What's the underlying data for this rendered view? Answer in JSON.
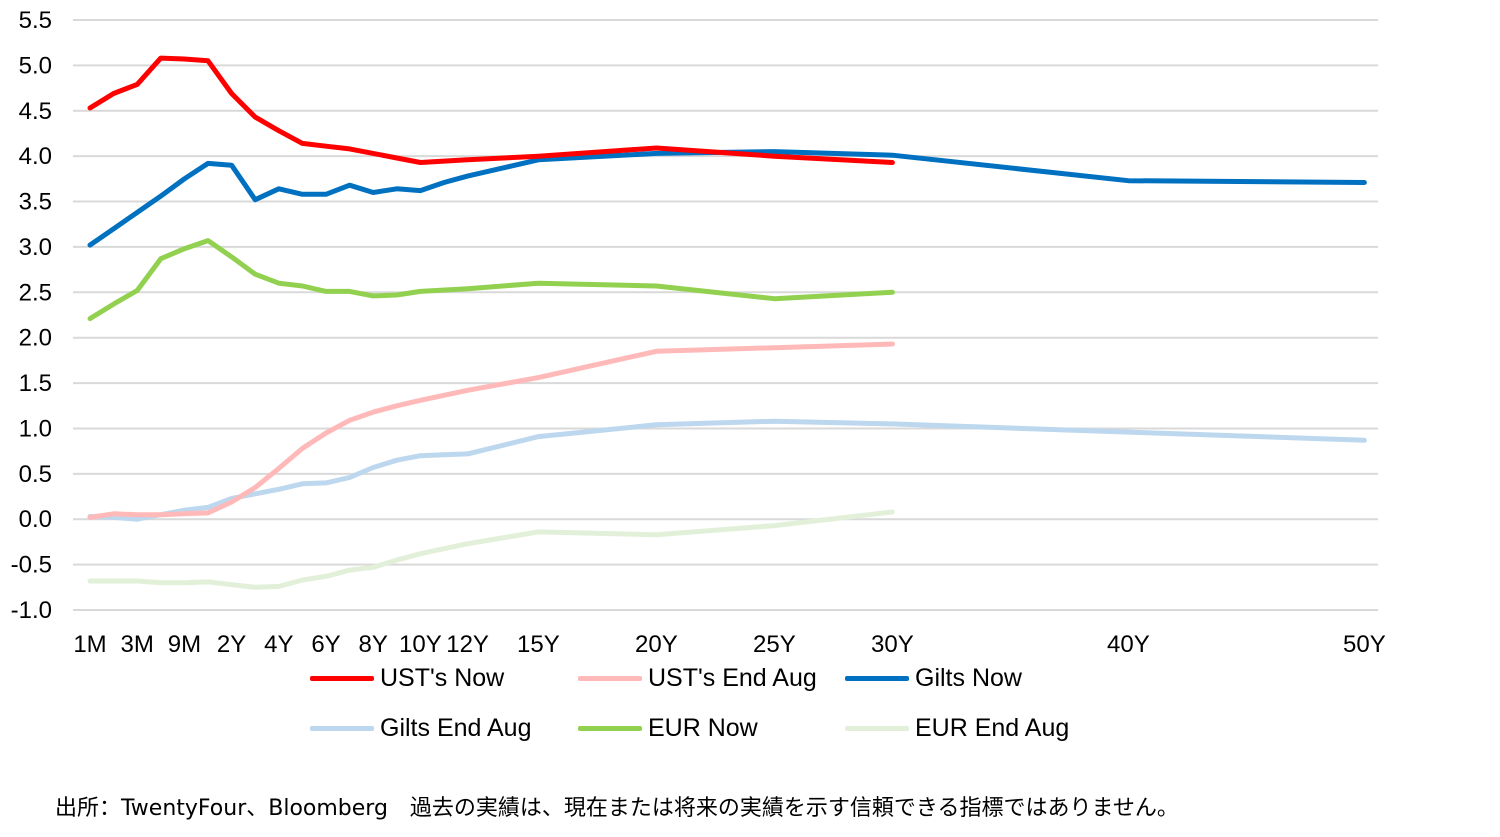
{
  "chart_data": {
    "type": "line",
    "title": "",
    "xlabel": "",
    "ylabel": "",
    "ylim": [
      -1.0,
      5.5
    ],
    "y_ticks": [
      "5.5",
      "5.0",
      "4.5",
      "4.0",
      "3.5",
      "3.0",
      "2.5",
      "2.0",
      "1.5",
      "1.0",
      "0.5",
      "0.0",
      "-0.5",
      "-1.0"
    ],
    "x_ticks": [
      "1M",
      "3M",
      "9M",
      "2Y",
      "4Y",
      "6Y",
      "8Y",
      "10Y",
      "12Y",
      "15Y",
      "20Y",
      "25Y",
      "30Y",
      "40Y",
      "50Y"
    ],
    "grid": true,
    "legend_position": "bottom",
    "series": [
      {
        "name": "UST's Now",
        "color": "#ff0000",
        "points": [
          [
            "1M",
            4.53
          ],
          [
            "2M",
            4.69
          ],
          [
            "3M",
            4.79
          ],
          [
            "6M",
            5.08
          ],
          [
            "9M",
            5.07
          ],
          [
            "1Y",
            5.05
          ],
          [
            "2Y",
            4.69
          ],
          [
            "3Y",
            4.43
          ],
          [
            "4Y",
            4.28
          ],
          [
            "5Y",
            4.14
          ],
          [
            "6Y",
            4.11
          ],
          [
            "7Y",
            4.08
          ],
          [
            "8Y",
            4.03
          ],
          [
            "9Y",
            3.98
          ],
          [
            "10Y",
            3.93
          ],
          [
            "12Y",
            3.96
          ],
          [
            "15Y",
            4.0
          ],
          [
            "20Y",
            4.09
          ],
          [
            "25Y",
            4.0
          ],
          [
            "30Y",
            3.93
          ]
        ]
      },
      {
        "name": "UST's End Aug",
        "color": "#ffb9b9",
        "points": [
          [
            "1M",
            0.02
          ],
          [
            "2M",
            0.06
          ],
          [
            "3M",
            0.05
          ],
          [
            "6M",
            0.05
          ],
          [
            "9M",
            0.06
          ],
          [
            "1Y",
            0.07
          ],
          [
            "2Y",
            0.19
          ],
          [
            "3Y",
            0.35
          ],
          [
            "4Y",
            0.56
          ],
          [
            "5Y",
            0.78
          ],
          [
            "6Y",
            0.95
          ],
          [
            "7Y",
            1.09
          ],
          [
            "8Y",
            1.18
          ],
          [
            "9Y",
            1.25
          ],
          [
            "10Y",
            1.31
          ],
          [
            "12Y",
            1.42
          ],
          [
            "15Y",
            1.56
          ],
          [
            "20Y",
            1.85
          ],
          [
            "25Y",
            1.89
          ],
          [
            "30Y",
            1.93
          ]
        ]
      },
      {
        "name": "Gilts Now",
        "color": "#0070c0",
        "points": [
          [
            "1M",
            3.02
          ],
          [
            "2M",
            3.2
          ],
          [
            "3M",
            3.38
          ],
          [
            "6M",
            3.56
          ],
          [
            "9M",
            3.75
          ],
          [
            "1Y",
            3.92
          ],
          [
            "2Y",
            3.9
          ],
          [
            "3Y",
            3.52
          ],
          [
            "4Y",
            3.64
          ],
          [
            "5Y",
            3.58
          ],
          [
            "6Y",
            3.58
          ],
          [
            "7Y",
            3.68
          ],
          [
            "8Y",
            3.6
          ],
          [
            "9Y",
            3.64
          ],
          [
            "10Y",
            3.62
          ],
          [
            "11Y",
            3.71
          ],
          [
            "12Y",
            3.78
          ],
          [
            "15Y",
            3.96
          ],
          [
            "20Y",
            4.03
          ],
          [
            "25Y",
            4.05
          ],
          [
            "30Y",
            4.01
          ],
          [
            "40Y",
            3.73
          ],
          [
            "50Y",
            3.71
          ]
        ]
      },
      {
        "name": "Gilts End Aug",
        "color": "#bdd7ee",
        "points": [
          [
            "1M",
            0.03
          ],
          [
            "2M",
            0.02
          ],
          [
            "3M",
            0.0
          ],
          [
            "6M",
            0.05
          ],
          [
            "9M",
            0.1
          ],
          [
            "1Y",
            0.13
          ],
          [
            "2Y",
            0.23
          ],
          [
            "3Y",
            0.28
          ],
          [
            "4Y",
            0.33
          ],
          [
            "5Y",
            0.39
          ],
          [
            "6Y",
            0.4
          ],
          [
            "7Y",
            0.46
          ],
          [
            "8Y",
            0.57
          ],
          [
            "9Y",
            0.65
          ],
          [
            "10Y",
            0.7
          ],
          [
            "11Y",
            0.71
          ],
          [
            "12Y",
            0.72
          ],
          [
            "15Y",
            0.91
          ],
          [
            "20Y",
            1.04
          ],
          [
            "25Y",
            1.08
          ],
          [
            "30Y",
            1.05
          ],
          [
            "40Y",
            0.96
          ],
          [
            "50Y",
            0.87
          ]
        ]
      },
      {
        "name": "EUR Now",
        "color": "#92d050",
        "points": [
          [
            "1M",
            2.21
          ],
          [
            "2M",
            2.37
          ],
          [
            "3M",
            2.52
          ],
          [
            "6M",
            2.87
          ],
          [
            "9M",
            2.98
          ],
          [
            "1Y",
            3.07
          ],
          [
            "2Y",
            2.89
          ],
          [
            "3Y",
            2.7
          ],
          [
            "4Y",
            2.6
          ],
          [
            "5Y",
            2.57
          ],
          [
            "6Y",
            2.51
          ],
          [
            "7Y",
            2.51
          ],
          [
            "8Y",
            2.46
          ],
          [
            "9Y",
            2.47
          ],
          [
            "10Y",
            2.51
          ],
          [
            "12Y",
            2.54
          ],
          [
            "15Y",
            2.6
          ],
          [
            "20Y",
            2.57
          ],
          [
            "25Y",
            2.43
          ],
          [
            "30Y",
            2.5
          ]
        ]
      },
      {
        "name": "EUR End Aug",
        "color": "#e2f0d9",
        "points": [
          [
            "1M",
            -0.68
          ],
          [
            "2M",
            -0.68
          ],
          [
            "3M",
            -0.68
          ],
          [
            "6M",
            -0.7
          ],
          [
            "9M",
            -0.7
          ],
          [
            "1Y",
            -0.69
          ],
          [
            "2Y",
            -0.72
          ],
          [
            "3Y",
            -0.75
          ],
          [
            "4Y",
            -0.74
          ],
          [
            "5Y",
            -0.67
          ],
          [
            "6Y",
            -0.63
          ],
          [
            "7Y",
            -0.56
          ],
          [
            "8Y",
            -0.53
          ],
          [
            "9Y",
            -0.45
          ],
          [
            "10Y",
            -0.38
          ],
          [
            "12Y",
            -0.27
          ],
          [
            "15Y",
            -0.14
          ],
          [
            "20Y",
            -0.17
          ],
          [
            "25Y",
            -0.07
          ],
          [
            "30Y",
            0.08
          ]
        ]
      }
    ]
  },
  "footer": "出所：TwentyFour、Bloomberg　過去の実績は、現在または将来の実績を示す信頼できる指標ではありません。"
}
